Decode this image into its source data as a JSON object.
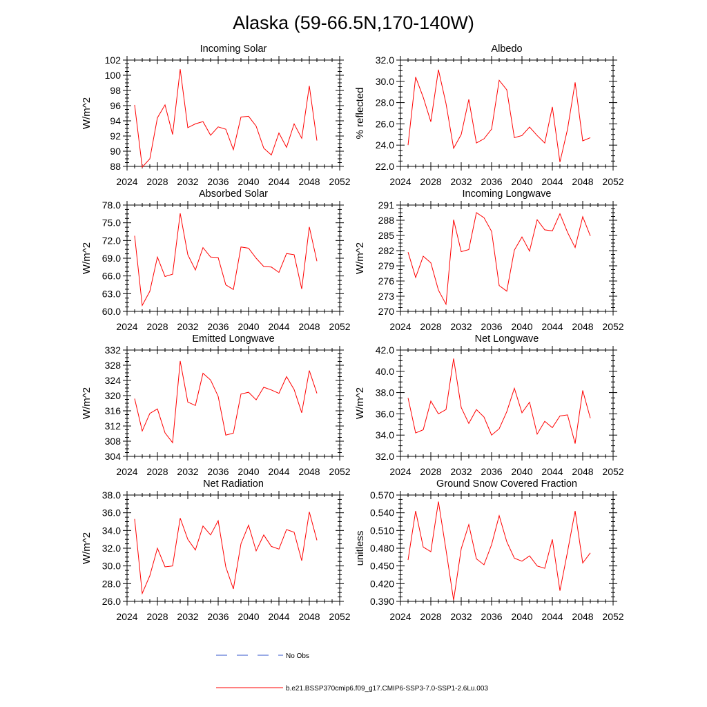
{
  "title": "Alaska (59-66.5N,170-140W)",
  "legend": {
    "entries": [
      {
        "label": "No Obs",
        "color": "#3355cc",
        "style": "dashed"
      },
      {
        "label": "b.e21.BSSP370cmip6.f09_g17.CMIP6-SSP3-7.0-SSP1-2.6Lu.003",
        "color": "#ff0000",
        "style": "solid"
      }
    ]
  },
  "chart_data": [
    {
      "type": "line",
      "title": "Incoming Solar",
      "xlabel": "",
      "ylabel": "W/m^2",
      "xlim": [
        2024,
        2052
      ],
      "ylim": [
        88,
        102
      ],
      "xticks": [
        "2024",
        "2028",
        "2032",
        "2036",
        "2040",
        "2044",
        "2048",
        "2052"
      ],
      "yticks": [
        "88",
        "90",
        "92",
        "94",
        "96",
        "98",
        "100",
        "102"
      ],
      "x": [
        2025,
        2026,
        2027,
        2028,
        2029,
        2030,
        2031,
        2032,
        2033,
        2034,
        2035,
        2036,
        2037,
        2038,
        2039,
        2040,
        2041,
        2042,
        2043,
        2044,
        2045,
        2046,
        2047,
        2048,
        2049
      ],
      "series": [
        {
          "name": "b.e21.BSSP370cmip6.f09_g17.CMIP6-SSP3-7.0-SSP1-2.6Lu.003",
          "color": "#ff0000",
          "values": [
            96.1,
            87.9,
            89.0,
            94.4,
            96.1,
            92.2,
            100.8,
            93.1,
            93.6,
            93.9,
            92.1,
            93.2,
            92.9,
            90.2,
            94.5,
            94.6,
            93.3,
            90.4,
            89.5,
            92.4,
            90.5,
            93.6,
            91.7,
            98.6,
            91.4
          ]
        }
      ]
    },
    {
      "type": "line",
      "title": "Albedo",
      "xlabel": "",
      "ylabel": "% reflected",
      "xlim": [
        2024,
        2052
      ],
      "ylim": [
        22,
        32
      ],
      "xticks": [
        "2024",
        "2028",
        "2032",
        "2036",
        "2040",
        "2044",
        "2048",
        "2052"
      ],
      "yticks": [
        "22.0",
        "24.0",
        "26.0",
        "28.0",
        "30.0",
        "32.0"
      ],
      "x": [
        2025,
        2026,
        2027,
        2028,
        2029,
        2030,
        2031,
        2032,
        2033,
        2034,
        2035,
        2036,
        2037,
        2038,
        2039,
        2040,
        2041,
        2042,
        2043,
        2044,
        2045,
        2046,
        2047,
        2048,
        2049
      ],
      "series": [
        {
          "name": "b.e21.BSSP370cmip6.f09_g17.CMIP6-SSP3-7.0-SSP1-2.6Lu.003",
          "color": "#ff0000",
          "values": [
            24.0,
            30.4,
            28.5,
            26.2,
            31.1,
            27.9,
            23.7,
            25.0,
            28.3,
            24.2,
            24.6,
            25.5,
            30.1,
            29.2,
            24.7,
            24.9,
            25.7,
            24.9,
            24.2,
            27.6,
            22.4,
            25.5,
            29.9,
            24.4,
            24.7
          ]
        }
      ]
    },
    {
      "type": "line",
      "title": "Absorbed Solar",
      "xlabel": "",
      "ylabel": "W/m^2",
      "xlim": [
        2024,
        2052
      ],
      "ylim": [
        60,
        78
      ],
      "xticks": [
        "2024",
        "2028",
        "2032",
        "2036",
        "2040",
        "2044",
        "2048",
        "2052"
      ],
      "yticks": [
        "60.0",
        "63.0",
        "66.0",
        "69.0",
        "72.0",
        "75.0",
        "78.0"
      ],
      "x": [
        2025,
        2026,
        2027,
        2028,
        2029,
        2030,
        2031,
        2032,
        2033,
        2034,
        2035,
        2036,
        2037,
        2038,
        2039,
        2040,
        2041,
        2042,
        2043,
        2044,
        2045,
        2046,
        2047,
        2048,
        2049
      ],
      "series": [
        {
          "name": "b.e21.BSSP370cmip6.f09_g17.CMIP6-SSP3-7.0-SSP1-2.6Lu.003",
          "color": "#ff0000",
          "values": [
            72.8,
            61.0,
            63.4,
            69.2,
            65.9,
            66.3,
            76.6,
            69.6,
            67.0,
            70.8,
            69.2,
            69.1,
            64.5,
            63.7,
            70.9,
            70.7,
            69.0,
            67.6,
            67.5,
            66.6,
            69.8,
            69.6,
            63.8,
            74.3,
            68.5
          ]
        }
      ]
    },
    {
      "type": "line",
      "title": "Incoming Longwave",
      "xlabel": "",
      "ylabel": "W/m^2",
      "xlim": [
        2024,
        2052
      ],
      "ylim": [
        270,
        291
      ],
      "xticks": [
        "2024",
        "2028",
        "2032",
        "2036",
        "2040",
        "2044",
        "2048",
        "2052"
      ],
      "yticks": [
        "270",
        "273",
        "276",
        "279",
        "282",
        "285",
        "288",
        "291"
      ],
      "x": [
        2025,
        2026,
        2027,
        2028,
        2029,
        2030,
        2031,
        2032,
        2033,
        2034,
        2035,
        2036,
        2037,
        2038,
        2039,
        2040,
        2041,
        2042,
        2043,
        2044,
        2045,
        2046,
        2047,
        2048,
        2049
      ],
      "series": [
        {
          "name": "b.e21.BSSP370cmip6.f09_g17.CMIP6-SSP3-7.0-SSP1-2.6Lu.003",
          "color": "#ff0000",
          "values": [
            281.7,
            276.7,
            280.9,
            279.6,
            274.2,
            271.4,
            288.1,
            281.8,
            282.2,
            289.5,
            288.5,
            285.8,
            275.1,
            274.0,
            282.1,
            284.7,
            281.9,
            288.1,
            286.1,
            285.9,
            289.3,
            285.6,
            282.6,
            288.7,
            284.9
          ]
        }
      ]
    },
    {
      "type": "line",
      "title": "Emitted Longwave",
      "xlabel": "",
      "ylabel": "W/m^2",
      "xlim": [
        2024,
        2052
      ],
      "ylim": [
        304,
        332
      ],
      "xticks": [
        "2024",
        "2028",
        "2032",
        "2036",
        "2040",
        "2044",
        "2048",
        "2052"
      ],
      "yticks": [
        "304",
        "308",
        "312",
        "316",
        "320",
        "324",
        "328",
        "332"
      ],
      "x": [
        2025,
        2026,
        2027,
        2028,
        2029,
        2030,
        2031,
        2032,
        2033,
        2034,
        2035,
        2036,
        2037,
        2038,
        2039,
        2040,
        2041,
        2042,
        2043,
        2044,
        2045,
        2046,
        2047,
        2048,
        2049
      ],
      "series": [
        {
          "name": "b.e21.BSSP370cmip6.f09_g17.CMIP6-SSP3-7.0-SSP1-2.6Lu.003",
          "color": "#ff0000",
          "values": [
            319.2,
            310.7,
            315.3,
            316.5,
            310.2,
            307.6,
            329.1,
            318.3,
            317.4,
            325.9,
            324.1,
            319.8,
            309.6,
            310.1,
            320.4,
            320.9,
            318.9,
            322.2,
            321.5,
            320.6,
            325.0,
            321.6,
            315.5,
            326.6,
            320.6
          ]
        }
      ]
    },
    {
      "type": "line",
      "title": "Net Longwave",
      "xlabel": "",
      "ylabel": "W/m^2",
      "xlim": [
        2024,
        2052
      ],
      "ylim": [
        32,
        42
      ],
      "xticks": [
        "2024",
        "2028",
        "2032",
        "2036",
        "2040",
        "2044",
        "2048",
        "2052"
      ],
      "yticks": [
        "32.0",
        "34.0",
        "36.0",
        "38.0",
        "40.0",
        "42.0"
      ],
      "x": [
        2025,
        2026,
        2027,
        2028,
        2029,
        2030,
        2031,
        2032,
        2033,
        2034,
        2035,
        2036,
        2037,
        2038,
        2039,
        2040,
        2041,
        2042,
        2043,
        2044,
        2045,
        2046,
        2047,
        2048,
        2049
      ],
      "series": [
        {
          "name": "b.e21.BSSP370cmip6.f09_g17.CMIP6-SSP3-7.0-SSP1-2.6Lu.003",
          "color": "#ff0000",
          "values": [
            37.5,
            34.2,
            34.5,
            37.2,
            36.0,
            36.4,
            41.2,
            36.6,
            35.1,
            36.4,
            35.7,
            34.0,
            34.6,
            36.2,
            38.4,
            36.1,
            37.1,
            34.1,
            35.3,
            34.7,
            35.8,
            35.9,
            33.2,
            38.2,
            35.6
          ]
        }
      ]
    },
    {
      "type": "line",
      "title": "Net Radiation",
      "xlabel": "",
      "ylabel": "W/m^2",
      "xlim": [
        2024,
        2052
      ],
      "ylim": [
        26,
        38
      ],
      "xticks": [
        "2024",
        "2028",
        "2032",
        "2036",
        "2040",
        "2044",
        "2048",
        "2052"
      ],
      "yticks": [
        "26.0",
        "28.0",
        "30.0",
        "32.0",
        "34.0",
        "36.0",
        "38.0"
      ],
      "x": [
        2025,
        2026,
        2027,
        2028,
        2029,
        2030,
        2031,
        2032,
        2033,
        2034,
        2035,
        2036,
        2037,
        2038,
        2039,
        2040,
        2041,
        2042,
        2043,
        2044,
        2045,
        2046,
        2047,
        2048,
        2049
      ],
      "series": [
        {
          "name": "b.e21.BSSP370cmip6.f09_g17.CMIP6-SSP3-7.0-SSP1-2.6Lu.003",
          "color": "#ff0000",
          "values": [
            35.3,
            26.9,
            28.9,
            32.0,
            29.9,
            30.0,
            35.4,
            33.0,
            31.8,
            34.5,
            33.5,
            35.1,
            29.9,
            27.4,
            32.5,
            34.6,
            31.7,
            33.5,
            32.2,
            31.9,
            34.1,
            33.8,
            30.6,
            36.1,
            32.9
          ]
        }
      ]
    },
    {
      "type": "line",
      "title": "Ground Snow Covered Fraction",
      "xlabel": "",
      "ylabel": "unitless",
      "xlim": [
        2024,
        2052
      ],
      "ylim": [
        0.39,
        0.57
      ],
      "xticks": [
        "2024",
        "2028",
        "2032",
        "2036",
        "2040",
        "2044",
        "2048",
        "2052"
      ],
      "yticks": [
        "0.390",
        "0.420",
        "0.450",
        "0.480",
        "0.510",
        "0.540",
        "0.570"
      ],
      "x": [
        2025,
        2026,
        2027,
        2028,
        2029,
        2030,
        2031,
        2032,
        2033,
        2034,
        2035,
        2036,
        2037,
        2038,
        2039,
        2040,
        2041,
        2042,
        2043,
        2044,
        2045,
        2046,
        2047,
        2048,
        2049
      ],
      "series": [
        {
          "name": "b.e21.BSSP370cmip6.f09_g17.CMIP6-SSP3-7.0-SSP1-2.6Lu.003",
          "color": "#ff0000",
          "values": [
            0.46,
            0.543,
            0.482,
            0.474,
            0.559,
            0.477,
            0.392,
            0.479,
            0.52,
            0.462,
            0.452,
            0.486,
            0.535,
            0.491,
            0.463,
            0.458,
            0.467,
            0.45,
            0.446,
            0.495,
            0.408,
            0.474,
            0.543,
            0.455,
            0.472
          ]
        }
      ]
    }
  ]
}
